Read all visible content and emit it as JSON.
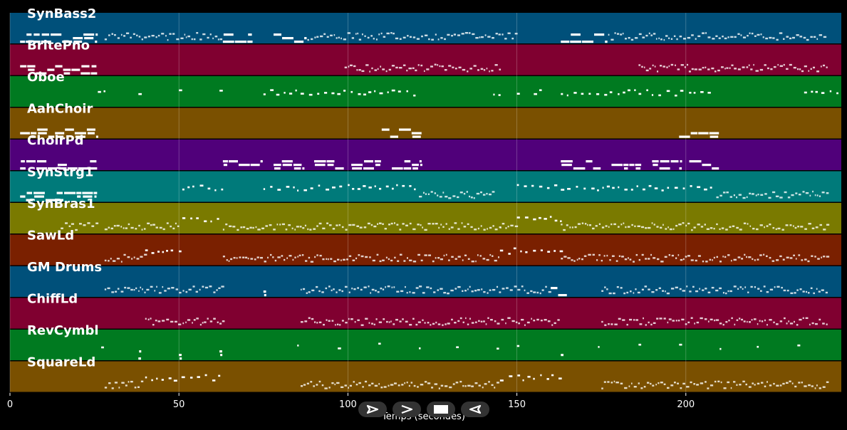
{
  "colors": {
    "background": "#000000",
    "note": "#ffffff",
    "grid": "#ffffff"
  },
  "axis": {
    "xlabel": "Temps (secondes)",
    "xmin": 0,
    "xmax": 246,
    "ticks": [
      0,
      50,
      100,
      150,
      200
    ]
  },
  "transport": [
    {
      "name": "play-button",
      "icon": "play-outline-icon"
    },
    {
      "name": "fast-forward-button",
      "icon": "chevron-right-icon"
    },
    {
      "name": "stop-button",
      "icon": "stop-square-icon"
    },
    {
      "name": "rewind-button",
      "icon": "play-reverse-outline-icon"
    }
  ],
  "chart_data": {
    "type": "heatmap",
    "xlabel": "Temps (secondes)",
    "xlim": [
      0,
      246
    ],
    "tracks": [
      {
        "name": "SynBass2",
        "color": "#00507a",
        "segments": [
          [
            3,
            26,
            "long"
          ],
          [
            28,
            63,
            "dense"
          ],
          [
            63,
            72,
            "long"
          ],
          [
            78,
            88,
            "long"
          ],
          [
            88,
            150,
            "dense"
          ],
          [
            163,
            177,
            "long"
          ],
          [
            177,
            242,
            "dense"
          ]
        ]
      },
      {
        "name": "BritePno",
        "color": "#800030",
        "segments": [
          [
            3,
            26,
            "long"
          ],
          [
            99,
            145,
            "dense"
          ],
          [
            186,
            242,
            "dense"
          ]
        ]
      },
      {
        "name": "Oboe",
        "color": "#007a20",
        "segments": [
          [
            26,
            28,
            "sparse"
          ],
          [
            38,
            40,
            "sparse"
          ],
          [
            50,
            52,
            "sparse"
          ],
          [
            62,
            63,
            "sparse"
          ],
          [
            75,
            121,
            "sparse"
          ],
          [
            143,
            145,
            "sparse"
          ],
          [
            150,
            151,
            "sparse"
          ],
          [
            155,
            157,
            "sparse"
          ],
          [
            163,
            209,
            "sparse"
          ],
          [
            235,
            246,
            "sparse"
          ]
        ]
      },
      {
        "name": "AahChoir",
        "color": "#7a5000",
        "segments": [
          [
            3,
            26,
            "long"
          ],
          [
            110,
            122,
            "long"
          ],
          [
            198,
            210,
            "long"
          ]
        ]
      },
      {
        "name": "ChoirPd",
        "color": "#50007a",
        "segments": [
          [
            3,
            26,
            "long"
          ],
          [
            63,
            75,
            "long"
          ],
          [
            78,
            87,
            "long"
          ],
          [
            90,
            99,
            "long"
          ],
          [
            101,
            110,
            "long"
          ],
          [
            113,
            122,
            "long"
          ],
          [
            163,
            175,
            "long"
          ],
          [
            178,
            187,
            "long"
          ],
          [
            190,
            199,
            "long"
          ],
          [
            201,
            210,
            "long"
          ]
        ]
      },
      {
        "name": "SynStrg1",
        "color": "#007a7a",
        "segments": [
          [
            3,
            26,
            "long"
          ],
          [
            51,
            63,
            "sparse"
          ],
          [
            75,
            121,
            "sparse"
          ],
          [
            121,
            143,
            "dense"
          ],
          [
            150,
            163,
            "sparse"
          ],
          [
            163,
            209,
            "sparse"
          ],
          [
            209,
            242,
            "dense"
          ]
        ]
      },
      {
        "name": "SynBras1",
        "color": "#7a7a00",
        "segments": [
          [
            15,
            26,
            "dense"
          ],
          [
            28,
            50,
            "dense"
          ],
          [
            51,
            63,
            "sparse"
          ],
          [
            63,
            145,
            "dense"
          ],
          [
            145,
            150,
            "dense"
          ],
          [
            150,
            163,
            "sparse"
          ],
          [
            163,
            242,
            "dense"
          ]
        ]
      },
      {
        "name": "SawLd",
        "color": "#7a2000",
        "segments": [
          [
            28,
            40,
            "dense"
          ],
          [
            40,
            51,
            "sparse"
          ],
          [
            63,
            145,
            "dense"
          ],
          [
            145,
            163,
            "sparse"
          ],
          [
            163,
            242,
            "dense"
          ]
        ]
      },
      {
        "name": "GM Drums",
        "color": "#00507a",
        "segments": [
          [
            28,
            63,
            "dense"
          ],
          [
            75,
            76,
            "long"
          ],
          [
            86,
            121,
            "dense"
          ],
          [
            121,
            160,
            "dense"
          ],
          [
            160,
            165,
            "long"
          ],
          [
            175,
            242,
            "dense"
          ]
        ]
      },
      {
        "name": "ChiffLd",
        "color": "#800030",
        "segments": [
          [
            40,
            63,
            "dense"
          ],
          [
            86,
            163,
            "dense"
          ],
          [
            175,
            242,
            "dense"
          ]
        ]
      },
      {
        "name": "RevCymbl",
        "color": "#007a20",
        "segments": [
          [
            27,
            28,
            "sparse"
          ],
          [
            38,
            39,
            "long"
          ],
          [
            50,
            51,
            "long"
          ],
          [
            62,
            63,
            "long"
          ],
          [
            85,
            86,
            "sparse"
          ],
          [
            97,
            98,
            "sparse"
          ],
          [
            109,
            110,
            "sparse"
          ],
          [
            121,
            122,
            "sparse"
          ],
          [
            132,
            133,
            "sparse"
          ],
          [
            144,
            146,
            "sparse"
          ],
          [
            150,
            151,
            "sparse"
          ],
          [
            163,
            164,
            "long"
          ],
          [
            174,
            175,
            "sparse"
          ],
          [
            186,
            187,
            "sparse"
          ],
          [
            198,
            199,
            "sparse"
          ],
          [
            210,
            211,
            "sparse"
          ],
          [
            221,
            222,
            "sparse"
          ],
          [
            233,
            234,
            "sparse"
          ]
        ]
      },
      {
        "name": "SquareLd",
        "color": "#7a5000",
        "segments": [
          [
            28,
            40,
            "dense"
          ],
          [
            40,
            63,
            "sparse"
          ],
          [
            86,
            145,
            "dense"
          ],
          [
            145,
            163,
            "sparse"
          ],
          [
            175,
            242,
            "dense"
          ]
        ]
      }
    ]
  }
}
